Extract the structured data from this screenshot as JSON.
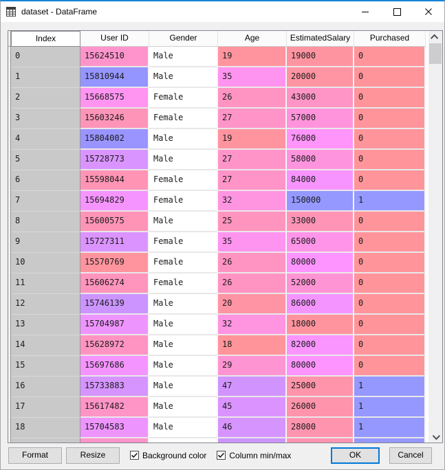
{
  "window": {
    "title": "dataset - DataFrame"
  },
  "icons": {
    "app_icon": "table-grid",
    "minimize": "–",
    "maximize": "□",
    "close": "✕",
    "scroll_up": "∧",
    "scroll_down": "∨",
    "checkbox_check": "✓"
  },
  "colors": {
    "titlebar_accent_top": "#1583D7",
    "ok_focus_border": "#0078D7",
    "index_cell_bg": "#C9C9C9",
    "purchased_0_bg": "#FF949A",
    "purchased_1_bg": "#9498FF"
  },
  "table": {
    "headers": [
      "Index",
      "User ID",
      "Gender",
      "Age",
      "EstimatedSalary",
      "Purchased"
    ],
    "rows": [
      {
        "index": "0",
        "cells": [
          {
            "t": "15624510",
            "bg": "#FF94CC"
          },
          {
            "t": "Male",
            "bg": "#FFFFFF"
          },
          {
            "t": "19",
            "bg": "#FF949F"
          },
          {
            "t": "19000",
            "bg": "#FF94A1"
          },
          {
            "t": "0",
            "bg": "#FF949A"
          }
        ]
      },
      {
        "index": "1",
        "cells": [
          {
            "t": "15810944",
            "bg": "#9495FF"
          },
          {
            "t": "Male",
            "bg": "#FFFFFF"
          },
          {
            "t": "35",
            "bg": "#FF94F0"
          },
          {
            "t": "20000",
            "bg": "#FF94A2"
          },
          {
            "t": "0",
            "bg": "#FF949A"
          }
        ]
      },
      {
        "index": "2",
        "cells": [
          {
            "t": "15668575",
            "bg": "#FF94F1"
          },
          {
            "t": "Female",
            "bg": "#FFFFFF"
          },
          {
            "t": "26",
            "bg": "#FF94C3"
          },
          {
            "t": "43000",
            "bg": "#FF94C6"
          },
          {
            "t": "0",
            "bg": "#FF949A"
          }
        ]
      },
      {
        "index": "3",
        "cells": [
          {
            "t": "15603246",
            "bg": "#FF94B9"
          },
          {
            "t": "Female",
            "bg": "#FFFFFF"
          },
          {
            "t": "27",
            "bg": "#FF94C8"
          },
          {
            "t": "57000",
            "bg": "#FF94DC"
          },
          {
            "t": "0",
            "bg": "#FF949A"
          }
        ]
      },
      {
        "index": "4",
        "cells": [
          {
            "t": "15804002",
            "bg": "#9994FF"
          },
          {
            "t": "Male",
            "bg": "#FFFFFF"
          },
          {
            "t": "19",
            "bg": "#FF949F"
          },
          {
            "t": "76000",
            "bg": "#FF94FA"
          },
          {
            "t": "0",
            "bg": "#FF949A"
          }
        ]
      },
      {
        "index": "5",
        "cells": [
          {
            "t": "15728773",
            "bg": "#D994FF"
          },
          {
            "t": "Male",
            "bg": "#FFFFFF"
          },
          {
            "t": "27",
            "bg": "#FF94C8"
          },
          {
            "t": "58000",
            "bg": "#FF94DE"
          },
          {
            "t": "0",
            "bg": "#FF949A"
          }
        ]
      },
      {
        "index": "6",
        "cells": [
          {
            "t": "15598044",
            "bg": "#FF94B5"
          },
          {
            "t": "Female",
            "bg": "#FFFFFF"
          },
          {
            "t": "27",
            "bg": "#FF94C8"
          },
          {
            "t": "84000",
            "bg": "#F794FF"
          },
          {
            "t": "0",
            "bg": "#FF949A"
          }
        ]
      },
      {
        "index": "7",
        "cells": [
          {
            "t": "15694829",
            "bg": "#F694FF"
          },
          {
            "t": "Female",
            "bg": "#FFFFFF"
          },
          {
            "t": "32",
            "bg": "#FF94E1"
          },
          {
            "t": "150000",
            "bg": "#9498FF"
          },
          {
            "t": "1",
            "bg": "#9498FF"
          }
        ]
      },
      {
        "index": "8",
        "cells": [
          {
            "t": "15600575",
            "bg": "#FF94B7"
          },
          {
            "t": "Male",
            "bg": "#FFFFFF"
          },
          {
            "t": "25",
            "bg": "#FF94BE"
          },
          {
            "t": "33000",
            "bg": "#FF94B7"
          },
          {
            "t": "0",
            "bg": "#FF949A"
          }
        ]
      },
      {
        "index": "9",
        "cells": [
          {
            "t": "15727311",
            "bg": "#DB94FF"
          },
          {
            "t": "Female",
            "bg": "#FFFFFF"
          },
          {
            "t": "35",
            "bg": "#FF94F0"
          },
          {
            "t": "65000",
            "bg": "#FF94E9"
          },
          {
            "t": "0",
            "bg": "#FF949A"
          }
        ]
      },
      {
        "index": "10",
        "cells": [
          {
            "t": "15570769",
            "bg": "#FF949E"
          },
          {
            "t": "Female",
            "bg": "#FFFFFF"
          },
          {
            "t": "26",
            "bg": "#FF94C3"
          },
          {
            "t": "80000",
            "bg": "#FE94FF"
          },
          {
            "t": "0",
            "bg": "#FF949A"
          }
        ]
      },
      {
        "index": "11",
        "cells": [
          {
            "t": "15606274",
            "bg": "#FF94BC"
          },
          {
            "t": "Female",
            "bg": "#FFFFFF"
          },
          {
            "t": "26",
            "bg": "#FF94C3"
          },
          {
            "t": "52000",
            "bg": "#FF94D4"
          },
          {
            "t": "0",
            "bg": "#FF949A"
          }
        ]
      },
      {
        "index": "12",
        "cells": [
          {
            "t": "15746139",
            "bg": "#CB94FF"
          },
          {
            "t": "Male",
            "bg": "#FFFFFF"
          },
          {
            "t": "20",
            "bg": "#FF94A4"
          },
          {
            "t": "86000",
            "bg": "#F494FF"
          },
          {
            "t": "0",
            "bg": "#FF949A"
          }
        ]
      },
      {
        "index": "13",
        "cells": [
          {
            "t": "15704987",
            "bg": "#EE94FF"
          },
          {
            "t": "Male",
            "bg": "#FFFFFF"
          },
          {
            "t": "32",
            "bg": "#FF94E1"
          },
          {
            "t": "18000",
            "bg": "#FF949F"
          },
          {
            "t": "0",
            "bg": "#FF949A"
          }
        ]
      },
      {
        "index": "14",
        "cells": [
          {
            "t": "15628972",
            "bg": "#FF94C3"
          },
          {
            "t": "Male",
            "bg": "#FFFFFF"
          },
          {
            "t": "18",
            "bg": "#FF949A"
          },
          {
            "t": "82000",
            "bg": "#FA94FF"
          },
          {
            "t": "0",
            "bg": "#FF949A"
          }
        ]
      },
      {
        "index": "15",
        "cells": [
          {
            "t": "15697686",
            "bg": "#F494FF"
          },
          {
            "t": "Male",
            "bg": "#FFFFFF"
          },
          {
            "t": "29",
            "bg": "#FF94D2"
          },
          {
            "t": "80000",
            "bg": "#FE94FF"
          },
          {
            "t": "0",
            "bg": "#FF949A"
          }
        ]
      },
      {
        "index": "16",
        "cells": [
          {
            "t": "15733883",
            "bg": "#D594FF"
          },
          {
            "t": "Male",
            "bg": "#FFFFFF"
          },
          {
            "t": "47",
            "bg": "#D194FF"
          },
          {
            "t": "25000",
            "bg": "#FF94AA"
          },
          {
            "t": "1",
            "bg": "#9498FF"
          }
        ]
      },
      {
        "index": "17",
        "cells": [
          {
            "t": "15617482",
            "bg": "#FF94C6"
          },
          {
            "t": "Male",
            "bg": "#FFFFFF"
          },
          {
            "t": "45",
            "bg": "#DB94FF"
          },
          {
            "t": "26000",
            "bg": "#FF94AC"
          },
          {
            "t": "1",
            "bg": "#9498FF"
          }
        ]
      },
      {
        "index": "18",
        "cells": [
          {
            "t": "15704583",
            "bg": "#EE94FF"
          },
          {
            "t": "Male",
            "bg": "#FFFFFF"
          },
          {
            "t": "46",
            "bg": "#D694FF"
          },
          {
            "t": "28000",
            "bg": "#FF94AF"
          },
          {
            "t": "1",
            "bg": "#9498FF"
          }
        ]
      },
      {
        "index": "",
        "cells": [
          {
            "t": "",
            "bg": "#FF94C9"
          },
          {
            "t": "",
            "bg": "#FFFFFF"
          },
          {
            "t": "",
            "bg": "#CC94FF"
          },
          {
            "t": "",
            "bg": "#FF94B0"
          },
          {
            "t": "",
            "bg": "#9498FF"
          }
        ]
      }
    ]
  },
  "footer": {
    "format_label": "Format",
    "resize_label": "Resize",
    "background_color_checkbox": {
      "label": "Background color",
      "checked": true
    },
    "column_minmax_checkbox": {
      "label": "Column min/max",
      "checked": true
    },
    "ok_label": "OK",
    "cancel_label": "Cancel"
  }
}
